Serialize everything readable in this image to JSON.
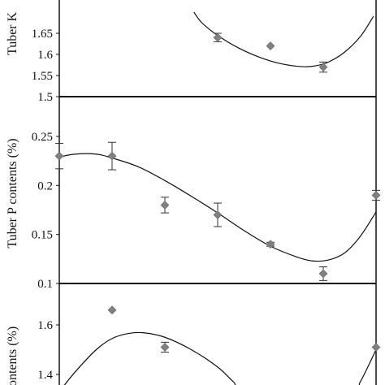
{
  "colors": {
    "marker": "#808080",
    "line": "#111111",
    "axis": "#111111",
    "error_bar": "#333333"
  },
  "chart_data": [
    {
      "type": "scatter",
      "panel": "top",
      "title": "",
      "xlabel": "",
      "ylabel": "Tuber K",
      "ylim": [
        1.5,
        1.7
      ],
      "y_ticks": [
        "1.65",
        "1.6",
        "1.55",
        "1.5"
      ],
      "y_tick_values": [
        1.65,
        1.6,
        1.55,
        1.5
      ],
      "grid": false,
      "trendline": "polynomial",
      "points": [
        {
          "x": 3,
          "y": 1.64,
          "err": 0.01
        },
        {
          "x": 4,
          "y": 1.62,
          "err": 0.0
        },
        {
          "x": 5,
          "y": 1.57,
          "err": 0.012
        }
      ],
      "curve": [
        {
          "x": 2.55,
          "y": 1.7
        },
        {
          "x": 2.7,
          "y": 1.675
        },
        {
          "x": 3.0,
          "y": 1.645
        },
        {
          "x": 3.4,
          "y": 1.615
        },
        {
          "x": 3.8,
          "y": 1.593
        },
        {
          "x": 4.2,
          "y": 1.578
        },
        {
          "x": 4.6,
          "y": 1.571
        },
        {
          "x": 4.85,
          "y": 1.573
        },
        {
          "x": 5.1,
          "y": 1.582
        },
        {
          "x": 5.4,
          "y": 1.605
        },
        {
          "x": 5.7,
          "y": 1.642
        },
        {
          "x": 5.95,
          "y": 1.69
        }
      ]
    },
    {
      "type": "scatter",
      "panel": "middle",
      "title": "",
      "xlabel": "",
      "ylabel": "Tuber P contents (%)",
      "ylim": [
        0.1,
        0.25
      ],
      "y_ticks": [
        "0.25",
        "0.2",
        "0.15",
        "0.1"
      ],
      "y_tick_values": [
        0.25,
        0.2,
        0.15,
        0.1
      ],
      "grid": false,
      "trendline": "polynomial",
      "points": [
        {
          "x": 0,
          "y": 0.23,
          "err": 0.013
        },
        {
          "x": 1,
          "y": 0.23,
          "err": 0.014
        },
        {
          "x": 2,
          "y": 0.18,
          "err": 0.008
        },
        {
          "x": 3,
          "y": 0.17,
          "err": 0.012
        },
        {
          "x": 4,
          "y": 0.14,
          "err": 0.002
        },
        {
          "x": 5,
          "y": 0.11,
          "err": 0.007
        },
        {
          "x": 6,
          "y": 0.19,
          "err": 0.005
        }
      ],
      "curve": [
        {
          "x": 0.0,
          "y": 0.229
        },
        {
          "x": 0.3,
          "y": 0.232
        },
        {
          "x": 0.7,
          "y": 0.232
        },
        {
          "x": 1.0,
          "y": 0.228
        },
        {
          "x": 1.5,
          "y": 0.219
        },
        {
          "x": 2.0,
          "y": 0.205
        },
        {
          "x": 2.5,
          "y": 0.189
        },
        {
          "x": 3.0,
          "y": 0.172
        },
        {
          "x": 3.5,
          "y": 0.154
        },
        {
          "x": 4.0,
          "y": 0.138
        },
        {
          "x": 4.5,
          "y": 0.127
        },
        {
          "x": 4.8,
          "y": 0.123
        },
        {
          "x": 5.1,
          "y": 0.124
        },
        {
          "x": 5.4,
          "y": 0.131
        },
        {
          "x": 5.7,
          "y": 0.148
        },
        {
          "x": 6.0,
          "y": 0.173
        }
      ]
    },
    {
      "type": "scatter",
      "panel": "bottom",
      "title": "",
      "xlabel": "",
      "ylabel": "ontents (%)",
      "ylim": [
        1.3,
        1.75
      ],
      "y_ticks": [
        "1.6",
        "1.4"
      ],
      "y_tick_values": [
        1.6,
        1.4
      ],
      "grid": false,
      "trendline": "polynomial",
      "points": [
        {
          "x": 1,
          "y": 1.66,
          "err": 0.0
        },
        {
          "x": 2,
          "y": 1.51,
          "err": 0.02
        },
        {
          "x": 6,
          "y": 1.51,
          "err": 0.0
        }
      ],
      "curve": [
        {
          "x": 0.0,
          "y": 1.33
        },
        {
          "x": 0.3,
          "y": 1.41
        },
        {
          "x": 0.7,
          "y": 1.5
        },
        {
          "x": 1.0,
          "y": 1.545
        },
        {
          "x": 1.3,
          "y": 1.565
        },
        {
          "x": 1.6,
          "y": 1.568
        },
        {
          "x": 2.0,
          "y": 1.55
        },
        {
          "x": 2.5,
          "y": 1.5
        },
        {
          "x": 3.0,
          "y": 1.43
        },
        {
          "x": 3.3,
          "y": 1.37
        },
        {
          "x": 3.6,
          "y": 1.32
        },
        {
          "x": 5.5,
          "y": 1.32
        },
        {
          "x": 5.7,
          "y": 1.37
        },
        {
          "x": 6.0,
          "y": 1.5
        }
      ]
    }
  ]
}
